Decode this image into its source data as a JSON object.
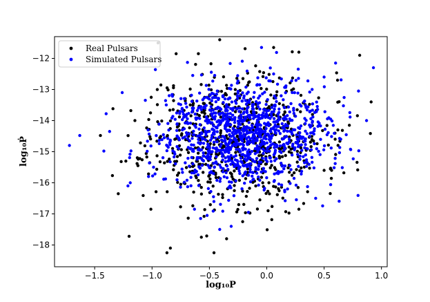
{
  "chart_data": {
    "type": "scatter",
    "title": "",
    "xlabel": "log₁₀P",
    "ylabel": "log₁₀Ṗ",
    "xlim": [
      -1.85,
      1.05
    ],
    "ylim": [
      -18.7,
      -11.3
    ],
    "xticks": [
      -1.5,
      -1.0,
      -0.5,
      0.0,
      0.5,
      1.0
    ],
    "xtick_labels": [
      "−1.5",
      "−1.0",
      "−0.5",
      "0.0",
      "0.5",
      "1.0"
    ],
    "yticks": [
      -18,
      -17,
      -16,
      -15,
      -14,
      -13,
      -12
    ],
    "ytick_labels": [
      "−18",
      "−17",
      "−16",
      "−15",
      "−14",
      "−13",
      "−12"
    ],
    "grid": false,
    "legend_position": "top-left",
    "series": [
      {
        "name": "Real Pulsars",
        "color": "#000000",
        "cluster": {
          "center": [
            -0.27,
            -14.55
          ],
          "spread": [
            0.38,
            1.05
          ],
          "count": 700,
          "seed": 11
        },
        "points": [
          [
            -0.41,
            -11.4
          ],
          [
            0.06,
            -11.65
          ],
          [
            -0.79,
            -11.85
          ],
          [
            0.81,
            -11.9
          ],
          [
            0.28,
            -11.8
          ],
          [
            -1.2,
            -17.72
          ],
          [
            -0.84,
            -18.1
          ],
          [
            -0.87,
            -18.25
          ],
          [
            -0.46,
            -18.25
          ],
          [
            -0.35,
            -17.8
          ],
          [
            -0.57,
            -17.75
          ],
          [
            0.91,
            -13.4
          ],
          [
            0.62,
            -14.3
          ],
          [
            0.72,
            -14.15
          ],
          [
            0.5,
            -15.6
          ],
          [
            -1.45,
            -14.48
          ],
          [
            -1.01,
            -16.85
          ],
          [
            0.28,
            -16.85
          ],
          [
            -0.21,
            -17.25
          ],
          [
            -0.06,
            -16.55
          ]
        ]
      },
      {
        "name": "Simulated Pulsars",
        "color": "#0000ff",
        "cluster": {
          "center": [
            -0.22,
            -14.45
          ],
          "spread": [
            0.36,
            0.82
          ],
          "count": 1100,
          "seed": 29
        },
        "points": [
          [
            -1.72,
            -14.8
          ],
          [
            -1.63,
            -14.48
          ],
          [
            -1.4,
            -13.78
          ],
          [
            -1.37,
            -14.35
          ],
          [
            -1.42,
            -14.98
          ],
          [
            0.93,
            -12.3
          ],
          [
            0.87,
            -14.0
          ],
          [
            0.6,
            -12.15
          ],
          [
            0.5,
            -12.6
          ],
          [
            -0.52,
            -17.05
          ],
          [
            -0.41,
            -17.5
          ],
          [
            -0.31,
            -17.4
          ],
          [
            -0.16,
            -16.95
          ],
          [
            -1.26,
            -13.1
          ],
          [
            -1.19,
            -16.0
          ],
          [
            -1.21,
            -16.1
          ],
          [
            0.8,
            -13.05
          ],
          [
            0.73,
            -14.92
          ],
          [
            0.06,
            -12.5
          ],
          [
            -0.63,
            -16.85
          ]
        ]
      }
    ]
  }
}
